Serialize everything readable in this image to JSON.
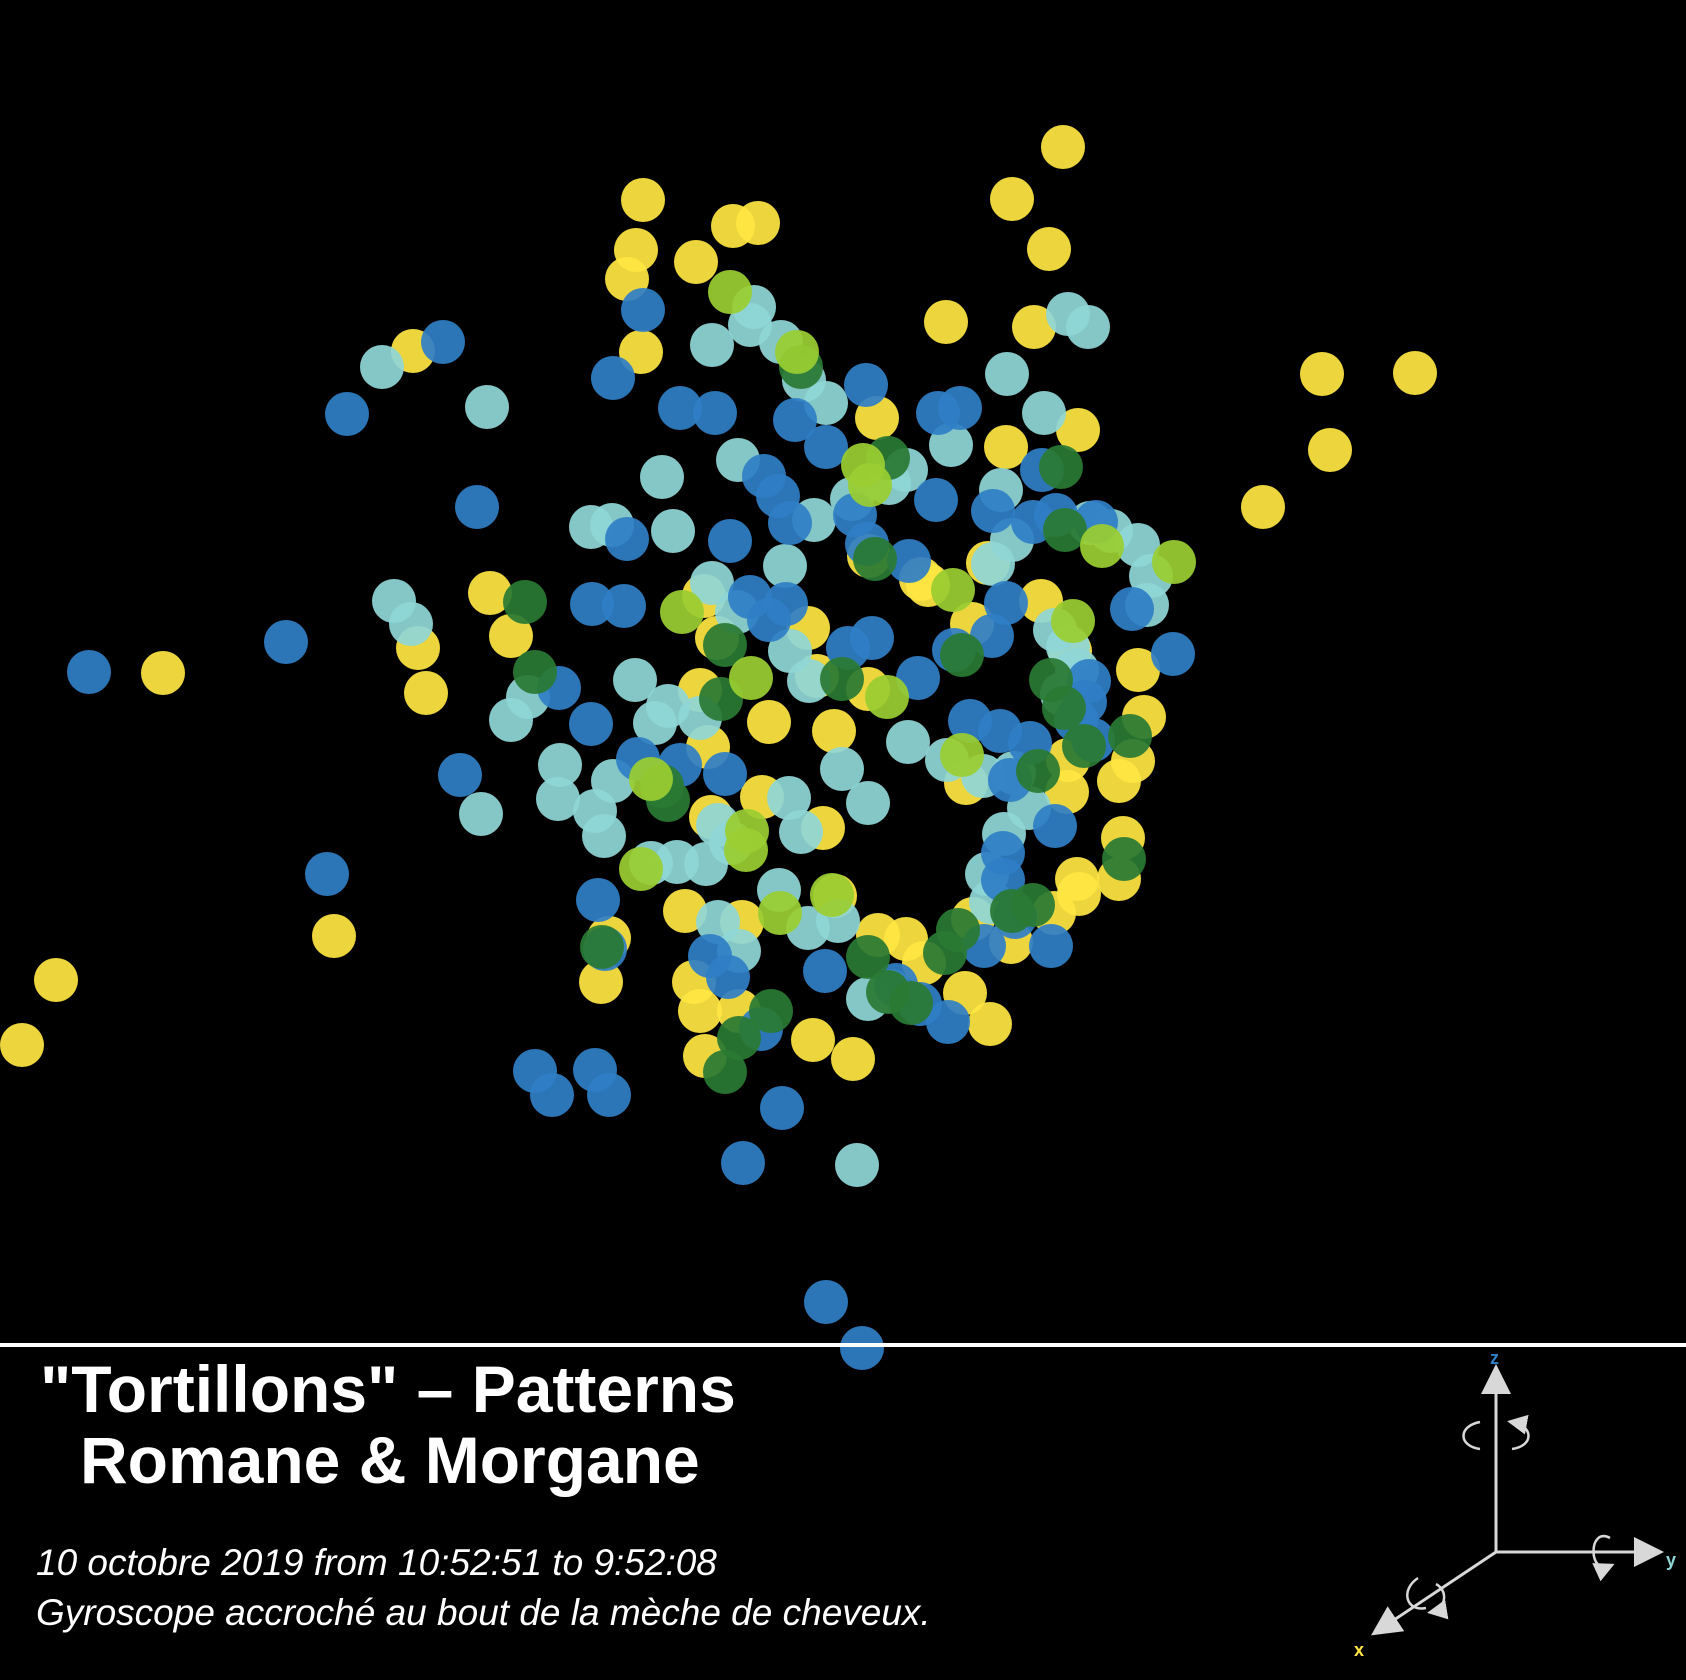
{
  "chart_data": {
    "type": "scatter",
    "title": "\"Tortillons\" – Patterns",
    "subtitle": "Romane & Morgane",
    "caption_line1": "10 octobre 2019 from 10:52:51 to 9:52:08",
    "caption_line2": "Gyroscope accroché au bout de la mèche de cheveux.",
    "grid": false,
    "legend": "none",
    "axis_gizmo_labels": [
      "z",
      "y",
      "x"
    ],
    "series": [
      {
        "color": "#ffe642",
        "points": [
          [
            1063,
            147
          ],
          [
            1012,
            199
          ],
          [
            1049,
            249
          ],
          [
            643,
            200
          ],
          [
            758,
            223
          ],
          [
            733,
            226
          ],
          [
            636,
            250
          ],
          [
            696,
            262
          ],
          [
            627,
            279
          ],
          [
            641,
            352
          ],
          [
            946,
            322
          ],
          [
            1034,
            327
          ],
          [
            413,
            351
          ],
          [
            1322,
            374
          ],
          [
            1415,
            373
          ],
          [
            1330,
            450
          ],
          [
            1263,
            507
          ],
          [
            1006,
            447
          ],
          [
            1078,
            430
          ],
          [
            877,
            418
          ],
          [
            988,
            563
          ],
          [
            869,
            556
          ],
          [
            928,
            585
          ],
          [
            808,
            628
          ],
          [
            490,
            593
          ],
          [
            511,
            636
          ],
          [
            418,
            648
          ],
          [
            426,
            693
          ],
          [
            163,
            673
          ],
          [
            704,
            596
          ],
          [
            717,
            638
          ],
          [
            700,
            690
          ],
          [
            708,
            747
          ],
          [
            769,
            722
          ],
          [
            834,
            731
          ],
          [
            817,
            676
          ],
          [
            868,
            689
          ],
          [
            921,
            579
          ],
          [
            972,
            624
          ],
          [
            1041,
            601
          ],
          [
            1070,
            651
          ],
          [
            1138,
            670
          ],
          [
            1144,
            717
          ],
          [
            1133,
            761
          ],
          [
            1119,
            781
          ],
          [
            1067,
            792
          ],
          [
            1068,
            760
          ],
          [
            966,
            783
          ],
          [
            1077,
            879
          ],
          [
            1123,
            838
          ],
          [
            1119,
            879
          ],
          [
            1079,
            894
          ],
          [
            1054,
            913
          ],
          [
            1011,
            942
          ],
          [
            973,
            919
          ],
          [
            924,
            963
          ],
          [
            906,
            939
          ],
          [
            878,
            935
          ],
          [
            711,
            817
          ],
          [
            762,
            797
          ],
          [
            823,
            828
          ],
          [
            835,
            896
          ],
          [
            685,
            911
          ],
          [
            742,
            922
          ],
          [
            694,
            982
          ],
          [
            700,
            1011
          ],
          [
            739,
            1011
          ],
          [
            705,
            1056
          ],
          [
            813,
            1040
          ],
          [
            853,
            1059
          ],
          [
            601,
            982
          ],
          [
            609,
            938
          ],
          [
            334,
            936
          ],
          [
            56,
            980
          ],
          [
            22,
            1045
          ],
          [
            990,
            1024
          ],
          [
            965,
            993
          ]
        ]
      },
      {
        "color": "#8fd6d6",
        "points": [
          [
            754,
            307
          ],
          [
            750,
            325
          ],
          [
            712,
            345
          ],
          [
            781,
            342
          ],
          [
            804,
            380
          ],
          [
            826,
            403
          ],
          [
            1068,
            314
          ],
          [
            1088,
            327
          ],
          [
            1007,
            374
          ],
          [
            1044,
            413
          ],
          [
            382,
            367
          ],
          [
            487,
            407
          ],
          [
            738,
            460
          ],
          [
            662,
            477
          ],
          [
            612,
            525
          ],
          [
            591,
            527
          ],
          [
            673,
            531
          ],
          [
            785,
            566
          ],
          [
            712,
            583
          ],
          [
            737,
            612
          ],
          [
            814,
            520
          ],
          [
            852,
            499
          ],
          [
            889,
            483
          ],
          [
            906,
            470
          ],
          [
            951,
            445
          ],
          [
            1001,
            490
          ],
          [
            1012,
            540
          ],
          [
            993,
            564
          ],
          [
            1090,
            523
          ],
          [
            1111,
            531
          ],
          [
            1138,
            545
          ],
          [
            1151,
            576
          ],
          [
            1147,
            605
          ],
          [
            1055,
            630
          ],
          [
            1068,
            647
          ],
          [
            1077,
            670
          ],
          [
            1062,
            694
          ],
          [
            394,
            601
          ],
          [
            411,
            624
          ],
          [
            528,
            697
          ],
          [
            511,
            720
          ],
          [
            560,
            765
          ],
          [
            558,
            799
          ],
          [
            655,
            723
          ],
          [
            635,
            680
          ],
          [
            668,
            706
          ],
          [
            700,
            718
          ],
          [
            790,
            651
          ],
          [
            809,
            681
          ],
          [
            842,
            769
          ],
          [
            789,
            798
          ],
          [
            801,
            832
          ],
          [
            868,
            803
          ],
          [
            908,
            742
          ],
          [
            947,
            760
          ],
          [
            983,
            776
          ],
          [
            1014,
            773
          ],
          [
            1029,
            808
          ],
          [
            1004,
            834
          ],
          [
            987,
            874
          ],
          [
            991,
            902
          ],
          [
            613,
            781
          ],
          [
            595,
            811
          ],
          [
            604,
            836
          ],
          [
            651,
            863
          ],
          [
            677,
            862
          ],
          [
            706,
            864
          ],
          [
            718,
            825
          ],
          [
            731,
            843
          ],
          [
            779,
            890
          ],
          [
            808,
            928
          ],
          [
            838,
            921
          ],
          [
            868,
            999
          ],
          [
            890,
            991
          ],
          [
            718,
            922
          ],
          [
            739,
            951
          ],
          [
            481,
            814
          ],
          [
            857,
            1165
          ]
        ]
      },
      {
        "color": "#2f7fc6",
        "points": [
          [
            643,
            310
          ],
          [
            613,
            378
          ],
          [
            443,
            342
          ],
          [
            347,
            414
          ],
          [
            680,
            408
          ],
          [
            715,
            413
          ],
          [
            795,
            420
          ],
          [
            826,
            447
          ],
          [
            866,
            385
          ],
          [
            960,
            408
          ],
          [
            938,
            413
          ],
          [
            477,
            507
          ],
          [
            764,
            476
          ],
          [
            778,
            496
          ],
          [
            627,
            539
          ],
          [
            730,
            541
          ],
          [
            790,
            523
          ],
          [
            855,
            515
          ],
          [
            867,
            544
          ],
          [
            909,
            561
          ],
          [
            936,
            500
          ],
          [
            993,
            511
          ],
          [
            1042,
            470
          ],
          [
            1033,
            522
          ],
          [
            1056,
            515
          ],
          [
            1096,
            522
          ],
          [
            1132,
            609
          ],
          [
            1173,
            654
          ],
          [
            1089,
            681
          ],
          [
            1085,
            702
          ],
          [
            1076,
            720
          ],
          [
            1093,
            740
          ],
          [
            592,
            604
          ],
          [
            624,
            606
          ],
          [
            286,
            642
          ],
          [
            89,
            672
          ],
          [
            559,
            688
          ],
          [
            591,
            724
          ],
          [
            638,
            759
          ],
          [
            680,
            765
          ],
          [
            725,
            774
          ],
          [
            750,
            597
          ],
          [
            769,
            620
          ],
          [
            786,
            604
          ],
          [
            848,
            648
          ],
          [
            872,
            638
          ],
          [
            918,
            678
          ],
          [
            954,
            650
          ],
          [
            992,
            636
          ],
          [
            1006,
            603
          ],
          [
            970,
            721
          ],
          [
            1000,
            731
          ],
          [
            1030,
            743
          ],
          [
            1010,
            780
          ],
          [
            1055,
            826
          ],
          [
            1003,
            853
          ],
          [
            1003,
            880
          ],
          [
            1015,
            917
          ],
          [
            1051,
            946
          ],
          [
            984,
            946
          ],
          [
            460,
            775
          ],
          [
            598,
            900
          ],
          [
            535,
            1071
          ],
          [
            552,
            1095
          ],
          [
            595,
            1070
          ],
          [
            609,
            1095
          ],
          [
            605,
            949
          ],
          [
            710,
            956
          ],
          [
            728,
            977
          ],
          [
            761,
            1029
          ],
          [
            782,
            1108
          ],
          [
            743,
            1163
          ],
          [
            825,
            971
          ],
          [
            896,
            985
          ],
          [
            948,
            1022
          ],
          [
            920,
            1004
          ],
          [
            826,
            1302
          ],
          [
            862,
            1348
          ],
          [
            327,
            874
          ]
        ]
      },
      {
        "color": "#2a7a34",
        "points": [
          [
            801,
            367
          ],
          [
            888,
            458
          ],
          [
            1061,
            467
          ],
          [
            1065,
            530
          ],
          [
            875,
            559
          ],
          [
            525,
            602
          ],
          [
            535,
            672
          ],
          [
            721,
            699
          ],
          [
            725,
            645
          ],
          [
            842,
            679
          ],
          [
            962,
            655
          ],
          [
            1051,
            680
          ],
          [
            1064,
            708
          ],
          [
            1130,
            736
          ],
          [
            1084,
            746
          ],
          [
            1038,
            771
          ],
          [
            1033,
            905
          ],
          [
            1012,
            911
          ],
          [
            958,
            930
          ],
          [
            945,
            953
          ],
          [
            662,
            786
          ],
          [
            668,
            800
          ],
          [
            868,
            957
          ],
          [
            888,
            992
          ],
          [
            911,
            1003
          ],
          [
            1124,
            859
          ],
          [
            602,
            947
          ],
          [
            725,
            1072
          ],
          [
            771,
            1011
          ],
          [
            739,
            1038
          ]
        ]
      },
      {
        "color": "#9acd32",
        "points": [
          [
            797,
            352
          ],
          [
            730,
            292
          ],
          [
            863,
            465
          ],
          [
            870,
            485
          ],
          [
            1174,
            562
          ],
          [
            1102,
            546
          ],
          [
            953,
            590
          ],
          [
            1073,
            621
          ],
          [
            682,
            612
          ],
          [
            751,
            678
          ],
          [
            887,
            697
          ],
          [
            962,
            755
          ],
          [
            651,
            779
          ],
          [
            747,
            831
          ],
          [
            832,
            895
          ],
          [
            780,
            913
          ],
          [
            746,
            850
          ],
          [
            641,
            869
          ]
        ]
      }
    ]
  }
}
